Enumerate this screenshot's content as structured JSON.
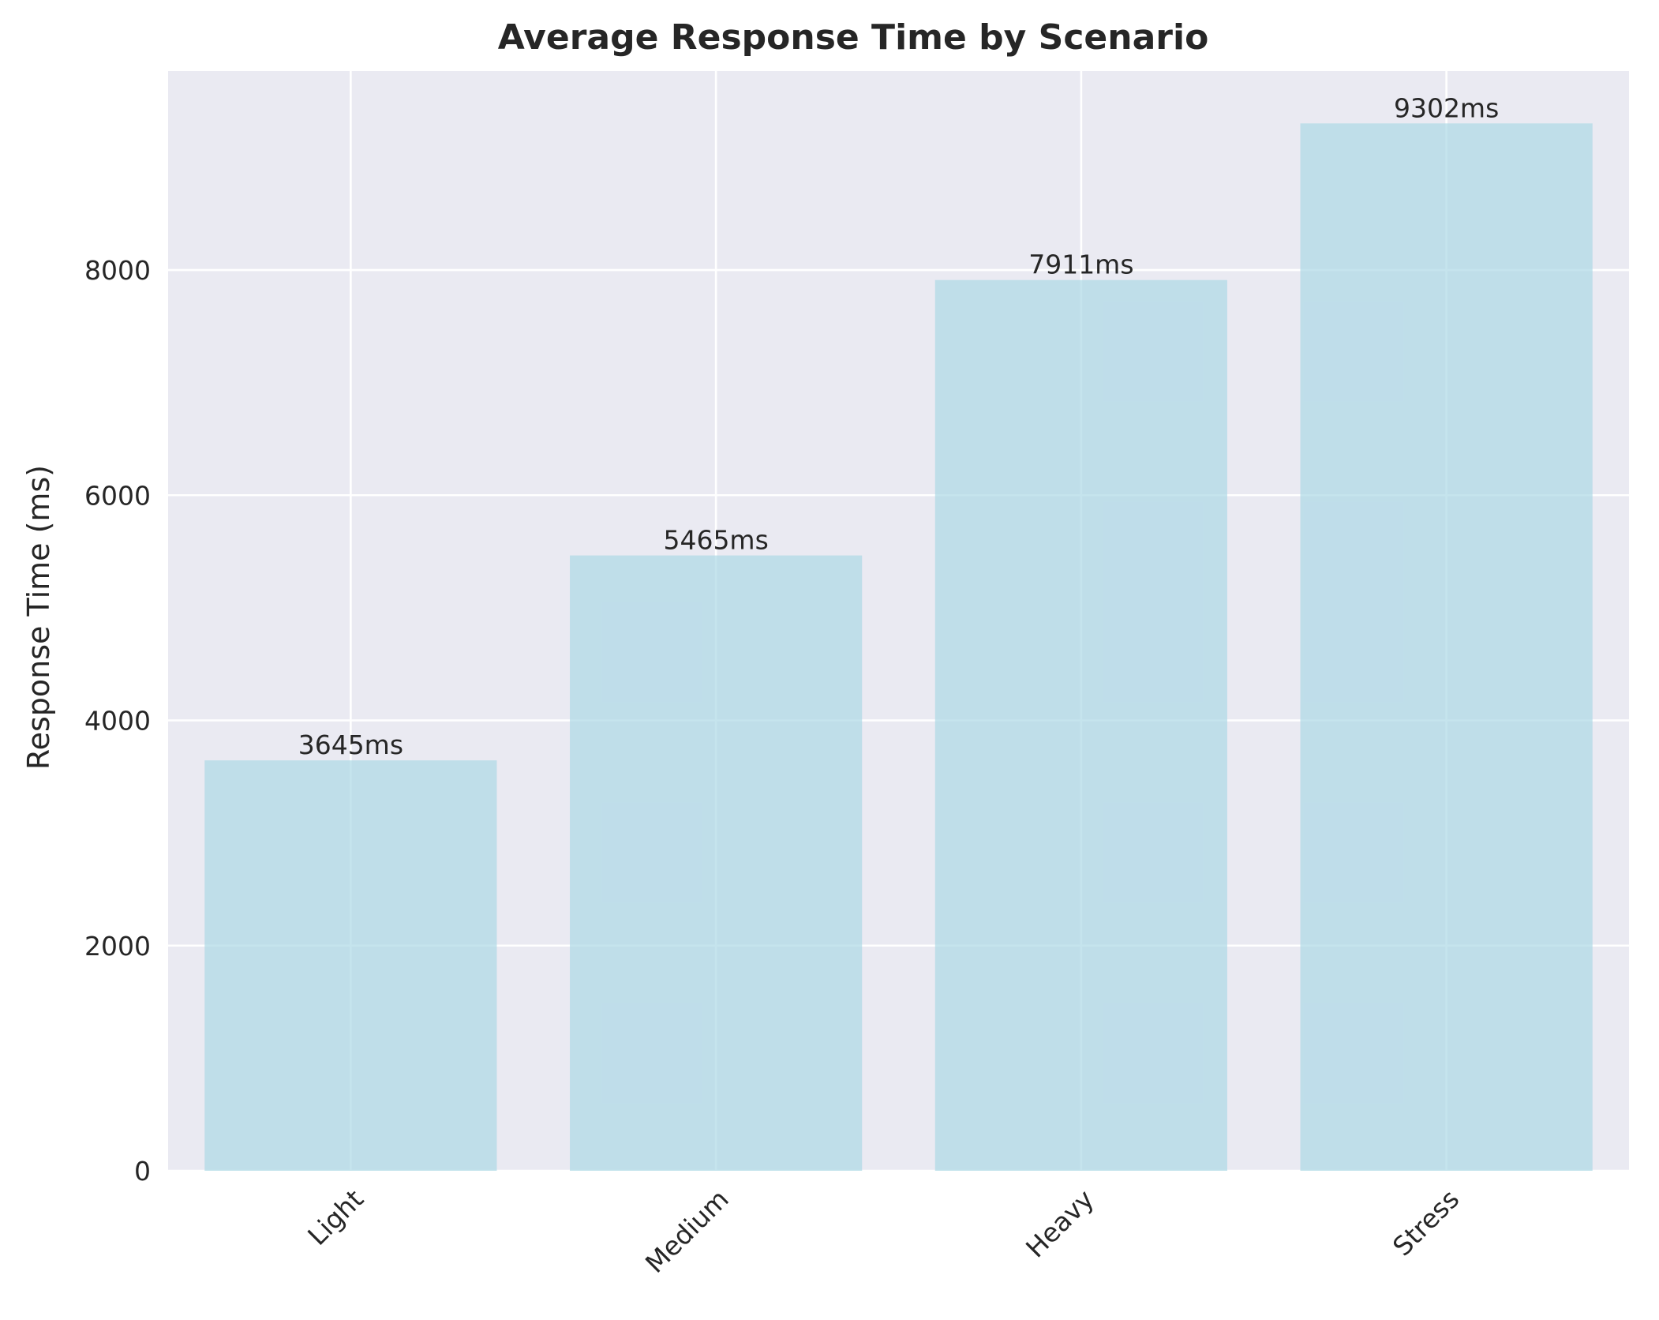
{
  "chart_data": {
    "type": "bar",
    "title": "Average Response Time by Scenario",
    "xlabel": "",
    "ylabel": "Response Time (ms)",
    "categories": [
      "Light",
      "Medium",
      "Heavy",
      "Stress"
    ],
    "values": [
      3645,
      5465,
      7911,
      9302
    ],
    "data_labels": [
      "3645ms",
      "5465ms",
      "7911ms",
      "9302ms"
    ],
    "y_ticks": [
      0,
      2000,
      4000,
      6000,
      8000
    ],
    "y_tick_labels": [
      "0",
      "2000",
      "4000",
      "6000",
      "8000"
    ],
    "ylim": [
      0,
      9767
    ],
    "x_tick_rotation_deg": 45,
    "grid": true,
    "legend": "none",
    "colors": {
      "plot_background": "#eaeaf2",
      "grid": "#ffffff",
      "bar_fill": "#add8e6",
      "bar_alpha": 0.7,
      "text": "#262626"
    }
  }
}
